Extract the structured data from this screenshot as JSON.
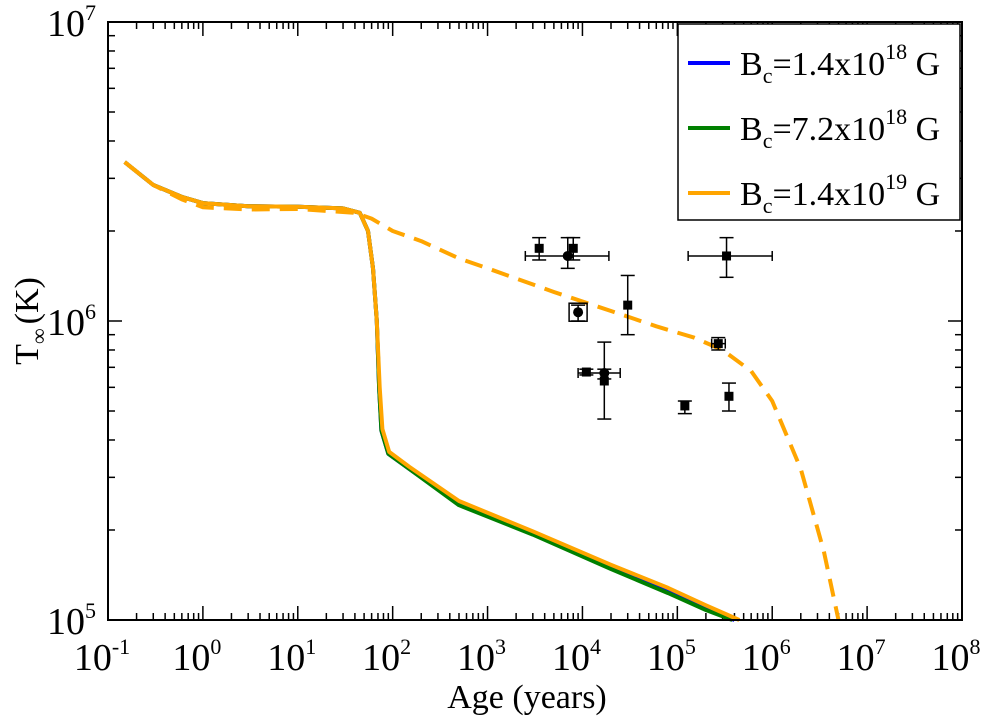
{
  "chart_data": {
    "type": "line",
    "xscale": "log",
    "yscale": "log",
    "xlim": [
      0.1,
      100000000
    ],
    "ylim": [
      100000,
      10000000
    ],
    "xlabel": "Age (years)",
    "ylabel": "T",
    "ylabel_sub": "∞",
    "ylabel_unit": "(K)",
    "x_ticks": [
      {
        "base": "10",
        "exp": "-1",
        "value": 0.1
      },
      {
        "base": "10",
        "exp": "0",
        "value": 1
      },
      {
        "base": "10",
        "exp": "1",
        "value": 10
      },
      {
        "base": "10",
        "exp": "2",
        "value": 100
      },
      {
        "base": "10",
        "exp": "3",
        "value": 1000
      },
      {
        "base": "10",
        "exp": "4",
        "value": 10000
      },
      {
        "base": "10",
        "exp": "5",
        "value": 100000
      },
      {
        "base": "10",
        "exp": "6",
        "value": 1000000
      },
      {
        "base": "10",
        "exp": "7",
        "value": 10000000
      },
      {
        "base": "10",
        "exp": "8",
        "value": 100000000
      }
    ],
    "y_ticks": [
      {
        "base": "10",
        "exp": "5",
        "value": 100000
      },
      {
        "base": "10",
        "exp": "6",
        "value": 1000000
      },
      {
        "base": "10",
        "exp": "7",
        "value": 10000000
      }
    ],
    "legend_position": "top-right",
    "series": [
      {
        "name": "Bc=1.4x10^18 G",
        "label_main": "B",
        "label_sub": "c",
        "label_mid": "=1.4x10",
        "label_exp": "18",
        "label_tail": " G",
        "color": "#0000ff",
        "dash": "solid",
        "points": [
          [
            0.15,
            3400000.0
          ],
          [
            0.3,
            2850000.0
          ],
          [
            0.6,
            2600000.0
          ],
          [
            1,
            2480000.0
          ],
          [
            3,
            2420000.0
          ],
          [
            10,
            2410000.0
          ],
          [
            30,
            2380000.0
          ],
          [
            45,
            2300000.0
          ],
          [
            55,
            2000000.0
          ],
          [
            62,
            1500000.0
          ],
          [
            68,
            1000000.0
          ],
          [
            72,
            600000.0
          ],
          [
            76,
            430000.0
          ],
          [
            90,
            360000.0
          ],
          [
            150,
            320000.0
          ],
          [
            500,
            245000.0
          ],
          [
            3000,
            195000.0
          ],
          [
            20000,
            150000.0
          ],
          [
            80000,
            125000.0
          ],
          [
            200000,
            110000.0
          ],
          [
            400000,
            100000.0
          ]
        ]
      },
      {
        "name": "Bc=7.2x10^18 G",
        "label_main": "B",
        "label_sub": "c",
        "label_mid": "=7.2x10",
        "label_exp": "18",
        "label_tail": " G",
        "color": "#008000",
        "dash": "solid",
        "points": [
          [
            0.15,
            3400000.0
          ],
          [
            0.3,
            2850000.0
          ],
          [
            0.6,
            2600000.0
          ],
          [
            1,
            2480000.0
          ],
          [
            3,
            2420000.0
          ],
          [
            10,
            2410000.0
          ],
          [
            30,
            2380000.0
          ],
          [
            45,
            2300000.0
          ],
          [
            55,
            2000000.0
          ],
          [
            62,
            1500000.0
          ],
          [
            68,
            1000000.0
          ],
          [
            72,
            600000.0
          ],
          [
            76,
            430000.0
          ],
          [
            90,
            360000.0
          ],
          [
            150,
            320000.0
          ],
          [
            500,
            242000.0
          ],
          [
            3000,
            193000.0
          ],
          [
            20000,
            148000.0
          ],
          [
            80000,
            123000.0
          ],
          [
            200000,
            108000.0
          ],
          [
            380000,
            100000.0
          ]
        ]
      },
      {
        "name": "Bc=1.4x10^19 G",
        "label_main": "B",
        "label_sub": "c",
        "label_mid": "=1.4x10",
        "label_exp": "19",
        "label_tail": " G",
        "color": "#ffa500",
        "dash": "solid",
        "points": [
          [
            0.15,
            3400000.0
          ],
          [
            0.3,
            2850000.0
          ],
          [
            0.6,
            2600000.0
          ],
          [
            1,
            2480000.0
          ],
          [
            3,
            2420000.0
          ],
          [
            10,
            2410000.0
          ],
          [
            30,
            2380000.0
          ],
          [
            45,
            2300000.0
          ],
          [
            55,
            2000000.0
          ],
          [
            62,
            1500000.0
          ],
          [
            68,
            1000000.0
          ],
          [
            73,
            600000.0
          ],
          [
            78,
            435000.0
          ],
          [
            92,
            365000.0
          ],
          [
            150,
            325000.0
          ],
          [
            500,
            250000.0
          ],
          [
            3000,
            198000.0
          ],
          [
            20000,
            153000.0
          ],
          [
            80000,
            128000.0
          ],
          [
            200000,
            112000.0
          ],
          [
            450000,
            100000.0
          ]
        ]
      },
      {
        "name": "Bc=1.4x10^19 G (dashed)",
        "legend": false,
        "color": "#ffa500",
        "dash": "dashed",
        "points": [
          [
            0.15,
            3400000.0
          ],
          [
            0.3,
            2850000.0
          ],
          [
            0.6,
            2550000.0
          ],
          [
            1,
            2400000.0
          ],
          [
            3,
            2360000.0
          ],
          [
            10,
            2370000.0
          ],
          [
            40,
            2300000.0
          ],
          [
            60,
            2200000.0
          ],
          [
            100,
            2000000.0
          ],
          [
            200,
            1850000.0
          ],
          [
            500,
            1620000.0
          ],
          [
            1000,
            1500000.0
          ],
          [
            5000,
            1250000.0
          ],
          [
            20000,
            1080000.0
          ],
          [
            60000,
            960000.0
          ],
          [
            150000,
            880000.0
          ],
          [
            300000,
            800000.0
          ],
          [
            600000,
            680000.0
          ],
          [
            1000000,
            540000.0
          ],
          [
            2000000,
            320000.0
          ],
          [
            3500000,
            170000.0
          ],
          [
            5000000,
            100000.0
          ]
        ]
      }
    ],
    "observations": [
      {
        "marker": "square",
        "x": 3500,
        "y": 1750000.0,
        "xerr": [
          3500,
          3500
        ],
        "yerr": [
          1600000.0,
          1900000.0
        ]
      },
      {
        "marker": "square",
        "x": 8000,
        "y": 1750000.0,
        "xerr": [
          8000,
          8000
        ],
        "yerr": [
          1600000.0,
          1900000.0
        ]
      },
      {
        "marker": "circle",
        "x": 7000,
        "y": 1650000.0,
        "xerr": [
          2500,
          19000
        ],
        "yerr": [
          1500000.0,
          1900000.0
        ]
      },
      {
        "marker": "square",
        "x": 330000,
        "y": 1650000.0,
        "xerr": [
          130000,
          1000000
        ],
        "yerr": [
          1400000.0,
          1900000.0
        ]
      },
      {
        "marker": "square",
        "x": 30000,
        "y": 1130000.0,
        "xerr": [
          30000,
          30000
        ],
        "yerr": [
          900000.0,
          1420000.0
        ]
      },
      {
        "marker": "circle_boxed",
        "x": 9000,
        "y": 1070000.0,
        "xerr": [
          9000,
          9000
        ],
        "yerr": [
          1000000.0,
          1130000.0
        ]
      },
      {
        "marker": "square",
        "x": 270000,
        "y": 840000.0,
        "xerr": [
          230000,
          320000
        ],
        "yerr": [
          800000.0,
          880000.0
        ]
      },
      {
        "marker": "square",
        "x": 11000,
        "y": 675000.0,
        "xerr": [
          11000,
          11000
        ],
        "yerr": [
          660000.0,
          690000.0
        ]
      },
      {
        "marker": "circle",
        "x": 17000,
        "y": 670000.0,
        "xerr": [
          9000,
          25000
        ],
        "yerr": [
          640000.0,
          850000.0
        ]
      },
      {
        "marker": "square",
        "x": 17000,
        "y": 630000.0,
        "xerr": [
          17000,
          17000
        ],
        "yerr": [
          470000.0,
          690000.0
        ]
      },
      {
        "marker": "square",
        "x": 120000,
        "y": 520000.0,
        "xerr": [
          120000,
          120000
        ],
        "yerr": [
          490000.0,
          540000.0
        ]
      },
      {
        "marker": "square",
        "x": 350000,
        "y": 560000.0,
        "xerr": [
          350000,
          350000
        ],
        "yerr": [
          500000.0,
          620000.0
        ]
      }
    ]
  }
}
